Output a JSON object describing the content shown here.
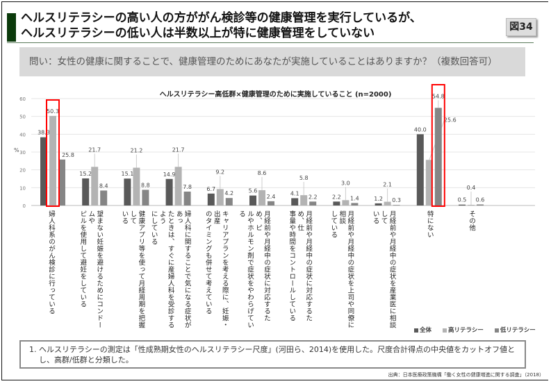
{
  "header": {
    "title_line1": "ヘルスリテラシーの高い人の方ががん検診等の健康管理を実行しているが、",
    "title_line2": "ヘルスリテラシーの低い人は半数以上が特に健康管理をしていない",
    "figure_badge": "図34"
  },
  "question": "問い：女性の健康に関することで、健康管理のためにあなたが実施していることはありますか？（複数回答可）",
  "chart_data": {
    "type": "bar",
    "title": "ヘルスリテラシー高低群×健康管理のために実施していること (n=2000)",
    "ylabel": "%",
    "ylim": [
      0,
      60
    ],
    "yticks": [
      "0",
      "10",
      "20",
      "30",
      "40",
      "50",
      "60"
    ],
    "grid": true,
    "legend_position": "bottom-right",
    "categories": [
      [
        "婦人科系のがん検診に行っている"
      ],
      [
        "望まない妊娠を避けるためにコンドームや",
        "ピルを使用して避妊をしている"
      ],
      [
        "健康アプリ等を使って月経周期を把握して",
        "いる"
      ],
      [
        "婦人科に関することで気になる症状があっ",
        "たときは、すぐに産婦人科を受診するよう",
        "にしている"
      ],
      [
        "キャリアプランを考える際に、妊娠・出産",
        "のタイミングも併せて考えている"
      ],
      [
        "月経前や月経中の症状に対応するため、ピ",
        "ルやホルモン剤で症状をやわらげている"
      ],
      [
        "月経前や月経中の症状に対応するため、仕",
        "事量や時間をコントロールしている"
      ],
      [
        "月経前や月経中の症状を上司や同僚に相談",
        "している"
      ],
      [
        "月経前や月経中の症状を産業医に相談して",
        "いる"
      ],
      [
        "特にない"
      ],
      [
        "その他"
      ]
    ],
    "series": [
      {
        "name": "全体",
        "color": "#595959",
        "values": [
          38.3,
          15.2,
          15.1,
          14.9,
          6.7,
          5.6,
          4.1,
          2.2,
          1.2,
          40.0,
          0.5
        ]
      },
      {
        "name": "高リテラシー",
        "color": "#b3b3b3",
        "values": [
          50.3,
          21.7,
          21.2,
          21.7,
          9.2,
          8.6,
          5.8,
          3.0,
          2.1,
          25.6,
          0.4
        ]
      },
      {
        "name": "低リテラシー",
        "color": "#858585",
        "values": [
          25.8,
          8.4,
          8.8,
          7.8,
          4.2,
          2.4,
          2.2,
          1.4,
          0.3,
          54.8,
          0.6
        ]
      }
    ],
    "value_labels": [
      [
        "38.3",
        "15.2",
        "15.1",
        "14.9",
        "6.7",
        "5.6",
        "4.1",
        "2.2",
        "1.2",
        "40.0",
        "0.5"
      ],
      [
        "50.3",
        "21.7",
        "21.2",
        "21.7",
        "9.2",
        "8.6",
        "5.8",
        "3.0",
        "2.1",
        "25.6",
        "0.4"
      ],
      [
        "25.8",
        "8.4",
        "8.8",
        "7.8",
        "4.2",
        "2.4",
        "2.2",
        "1.4",
        "0.3",
        "54.8",
        "0.6"
      ]
    ],
    "highlights": [
      {
        "series": 1,
        "category": 0
      },
      {
        "series": 2,
        "category": 9
      }
    ],
    "highlight_color": "#ff0000"
  },
  "footnote": "1. ヘルスリテラシーの測定は「性成熟期女性のヘルスリテラシー尺度」(河田ら、2014)を使用した。尺度合計得点の中央値をカットオフ値とし、高群/低群と分類した。",
  "source": "出典：日本医療政策機構「働く女性の健康増進に関する調査」（2018）"
}
